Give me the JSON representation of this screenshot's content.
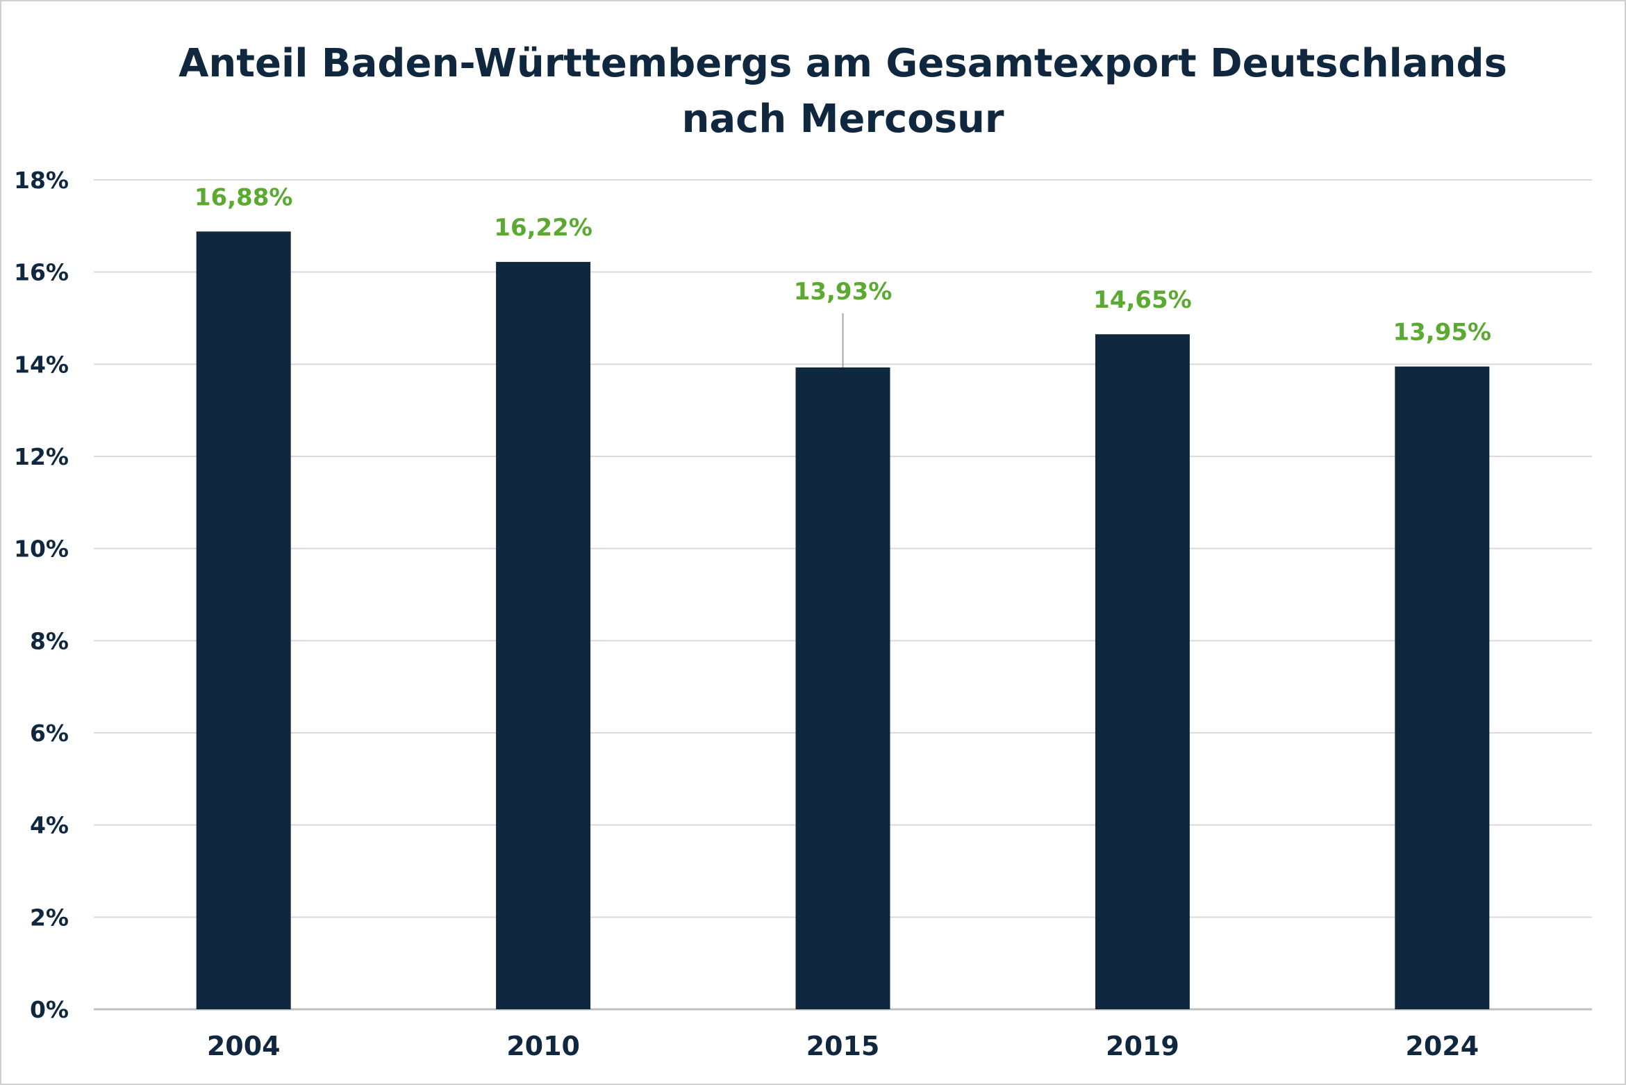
{
  "chart_data": {
    "type": "bar",
    "title_lines": [
      "Anteil Baden-Württembergs am Gesamtexport Deutschlands",
      "nach Mercosur"
    ],
    "categories": [
      "2004",
      "2010",
      "2015",
      "2019",
      "2024"
    ],
    "values": [
      16.88,
      16.22,
      13.93,
      14.65,
      13.95
    ],
    "data_labels": [
      "16,88%",
      "16,22%",
      "13,93%",
      "14,65%",
      "13,95%"
    ],
    "ylim": [
      0,
      18
    ],
    "y_ticks": [
      0,
      2,
      4,
      6,
      8,
      10,
      12,
      14,
      16,
      18
    ],
    "y_tick_labels": [
      "0%",
      "2%",
      "4%",
      "6%",
      "8%",
      "10%",
      "12%",
      "14%",
      "16%",
      "18%"
    ],
    "xlabel": "",
    "ylabel": "",
    "grid": true,
    "legend": "none",
    "colors": {
      "bar": "#10283f",
      "data_label": "#5aaa32",
      "text": "#10283f",
      "grid": "#d9d9d9",
      "axis": "#bfbfbf",
      "leader": "#a6a6a6"
    }
  }
}
